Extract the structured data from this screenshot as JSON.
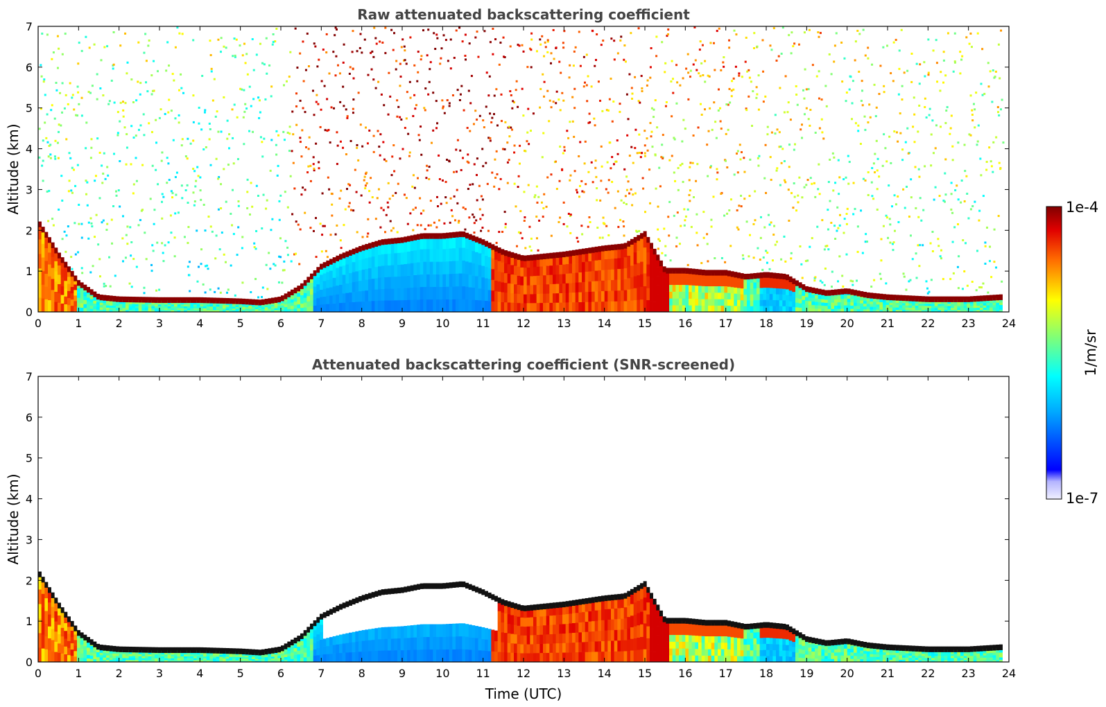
{
  "chart_data": [
    {
      "type": "heatmap",
      "title": "Raw attenuated backscattering coefficient",
      "xlabel": "",
      "ylabel": "Altitude (km)",
      "xlim": [
        0,
        24
      ],
      "ylim": [
        0,
        7
      ],
      "xticks": [
        "0",
        "1",
        "2",
        "3",
        "4",
        "5",
        "6",
        "7",
        "8",
        "9",
        "10",
        "11",
        "12",
        "13",
        "14",
        "15",
        "16",
        "17",
        "18",
        "19",
        "20",
        "21",
        "22",
        "23",
        "24"
      ],
      "yticks": [
        "0",
        "1",
        "2",
        "3",
        "4",
        "5",
        "6",
        "7"
      ],
      "boundary_layer_top_km": {
        "time": [
          0,
          0.5,
          1,
          1.5,
          2,
          3,
          4,
          5,
          5.5,
          6,
          6.5,
          7,
          7.5,
          8,
          8.5,
          9,
          9.5,
          10,
          10.5,
          11,
          11.5,
          12,
          13,
          14,
          14.5,
          15,
          15.5,
          16,
          16.5,
          17,
          17.5,
          18,
          18.5,
          19,
          19.5,
          20,
          20.5,
          21,
          22,
          23,
          23.8
        ],
        "altitude": [
          2.2,
          1.4,
          0.7,
          0.35,
          0.3,
          0.28,
          0.28,
          0.25,
          0.22,
          0.3,
          0.6,
          1.1,
          1.35,
          1.55,
          1.7,
          1.75,
          1.85,
          1.85,
          1.9,
          1.7,
          1.45,
          1.3,
          1.4,
          1.55,
          1.6,
          1.9,
          1.0,
          1.0,
          0.95,
          0.95,
          0.85,
          0.9,
          0.85,
          0.55,
          0.45,
          0.5,
          0.4,
          0.35,
          0.3,
          0.3,
          0.35
        ]
      },
      "colorbar": {
        "label": "1/m/sr",
        "min_label": "1e-7",
        "max_label": "1e-4",
        "scale": "log",
        "colormap": "jet"
      }
    },
    {
      "type": "heatmap",
      "title": "Attenuated backscattering coefficient (SNR-screened)",
      "xlabel": "Time (UTC)",
      "ylabel": "Altitude (km)",
      "xlim": [
        0,
        24
      ],
      "ylim": [
        0,
        7
      ],
      "xticks": [
        "0",
        "1",
        "2",
        "3",
        "4",
        "5",
        "6",
        "7",
        "8",
        "9",
        "10",
        "11",
        "12",
        "13",
        "14",
        "15",
        "16",
        "17",
        "18",
        "19",
        "20",
        "21",
        "22",
        "23",
        "24"
      ],
      "yticks": [
        "0",
        "1",
        "2",
        "3",
        "4",
        "5",
        "6",
        "7"
      ],
      "colorbar": {
        "label": "1/m/sr",
        "min_label": "1e-7",
        "max_label": "1e-4",
        "scale": "log",
        "colormap": "jet"
      }
    }
  ],
  "colors": {
    "title": "#444444",
    "axes": "#000000",
    "background": "#ffffff"
  }
}
